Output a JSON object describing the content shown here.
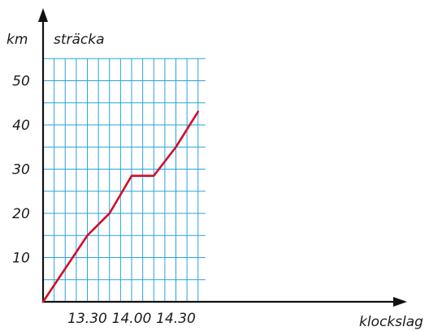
{
  "chart_data": {
    "type": "line",
    "xlabel": "klockslag",
    "ylabel_unit": "km",
    "ylabel": "sträcka",
    "x_ticks": [
      "13.30",
      "14.00",
      "14.30"
    ],
    "y_ticks": [
      "10",
      "20",
      "30",
      "40",
      "50"
    ],
    "xlim": [
      "13.00",
      "14.50"
    ],
    "ylim": [
      0,
      55
    ],
    "grid": true,
    "series": [
      {
        "x": [
          "13.00",
          "13.30",
          "13.45",
          "14.00",
          "14.15",
          "14.30",
          "14.45"
        ],
        "y": [
          0,
          15,
          20,
          28.5,
          28.5,
          35,
          43
        ]
      }
    ],
    "colors": {
      "grid": "#29a3dc",
      "line": "#d0102a",
      "axis": "#111111"
    }
  }
}
